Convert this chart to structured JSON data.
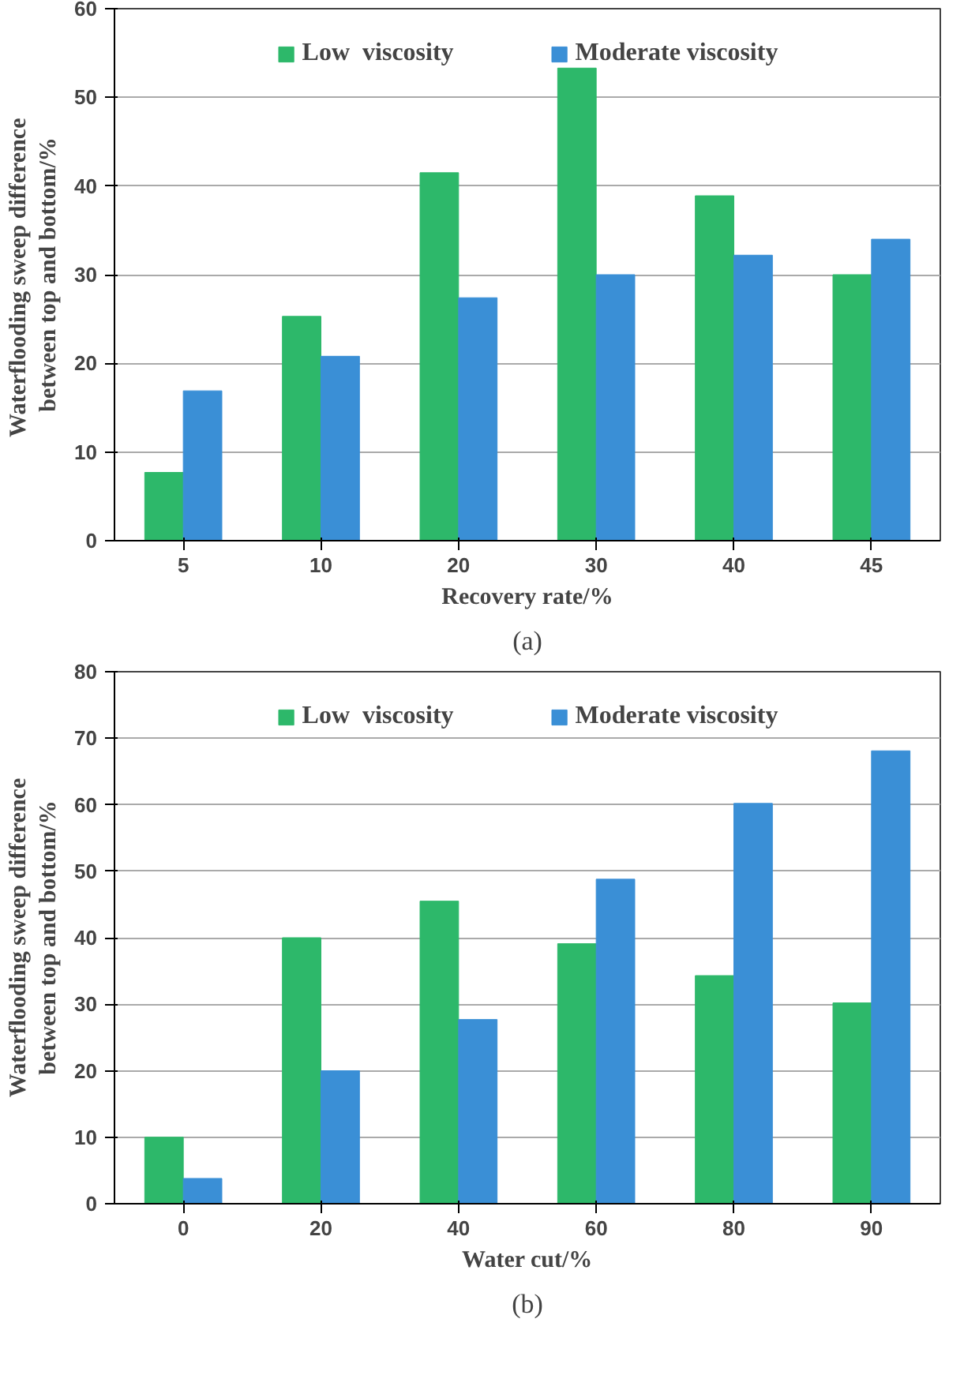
{
  "chart_data": [
    {
      "type": "bar",
      "xlabel": "Recovery rate/%",
      "ylabel": "Waterflooding  sweep difference\nbetween top and bottom/%",
      "categories": [
        "5",
        "10",
        "20",
        "30",
        "40",
        "45"
      ],
      "series": [
        {
          "name": "Low  viscosity",
          "color": "#2db86a",
          "values": [
            7.7,
            25.3,
            41.5,
            53.3,
            38.9,
            30.0
          ]
        },
        {
          "name": "Moderate viscosity",
          "color": "#3a8fd6",
          "values": [
            16.9,
            20.8,
            27.4,
            30.0,
            32.2,
            34.0
          ]
        }
      ],
      "ylim": [
        0,
        60
      ],
      "yticks": [
        0,
        10,
        20,
        30,
        40,
        50,
        60
      ],
      "grid": "y",
      "legend": "top",
      "annotations": [
        "(a)"
      ]
    },
    {
      "type": "bar",
      "xlabel": "Water cut/%",
      "ylabel": "Waterflooding sweep difference\nbetween top and bottom/%",
      "categories": [
        "0",
        "20",
        "40",
        "60",
        "80",
        "90"
      ],
      "series": [
        {
          "name": "Low  viscosity",
          "color": "#2db86a",
          "values": [
            10.0,
            40.0,
            45.5,
            39.1,
            34.3,
            30.2
          ]
        },
        {
          "name": "Moderate viscosity",
          "color": "#3a8fd6",
          "values": [
            3.8,
            20.0,
            27.7,
            48.8,
            60.2,
            68.1
          ]
        }
      ],
      "ylim": [
        0,
        80
      ],
      "yticks": [
        0,
        10,
        20,
        30,
        40,
        50,
        60,
        70,
        80
      ],
      "grid": "y",
      "legend": "top",
      "annotations": [
        "(b)"
      ]
    }
  ]
}
